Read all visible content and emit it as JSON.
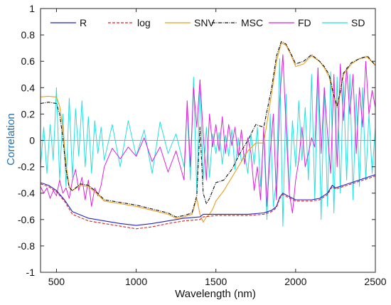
{
  "chart_data": {
    "type": "line",
    "xlabel": "Wavelength (nm)",
    "ylabel": "Correlation",
    "xlim": [
      400,
      2500
    ],
    "ylim": [
      -1,
      1
    ],
    "xticks": [
      500,
      1000,
      1500,
      2000,
      2500
    ],
    "yticks": [
      -1,
      -0.8,
      -0.6,
      -0.4,
      -0.2,
      0,
      0.2,
      0.4,
      0.6,
      0.8,
      1
    ],
    "ytick_labels": [
      "-1",
      "-0.8",
      "-0.6",
      "-0.4",
      "-0.2",
      "0",
      "0.2",
      "0.4",
      "0.6",
      "0.8",
      "1"
    ],
    "xtick_labels": [
      "500",
      "1000",
      "1500",
      "2000",
      "2500"
    ],
    "zero_line": true,
    "grid": false,
    "legend_position": "top",
    "colors": {
      "R": "#2222cc",
      "log": "#dd2222",
      "SNV": "#e8a020",
      "MSC": "#111111",
      "FD": "#dd22dd",
      "SD": "#22e0e0",
      "ylabel": "#1f6fb4",
      "zero_line": "#22dddd"
    },
    "series": [
      {
        "name": "R",
        "style": "solid",
        "x": [
          400,
          450,
          500,
          550,
          600,
          700,
          800,
          900,
          1000,
          1100,
          1200,
          1300,
          1400,
          1420,
          1500,
          1600,
          1700,
          1800,
          1850,
          1880,
          1900,
          1920,
          1950,
          2000,
          2050,
          2100,
          2150,
          2200,
          2230,
          2250,
          2300,
          2350,
          2400,
          2450,
          2500
        ],
        "y": [
          -0.32,
          -0.34,
          -0.38,
          -0.45,
          -0.54,
          -0.59,
          -0.61,
          -0.63,
          -0.645,
          -0.63,
          -0.61,
          -0.59,
          -0.58,
          -0.56,
          -0.56,
          -0.56,
          -0.56,
          -0.55,
          -0.53,
          -0.5,
          -0.43,
          -0.4,
          -0.42,
          -0.45,
          -0.45,
          -0.45,
          -0.44,
          -0.4,
          -0.34,
          -0.36,
          -0.34,
          -0.32,
          -0.3,
          -0.28,
          -0.26
        ]
      },
      {
        "name": "log",
        "style": "dashed",
        "x": [
          400,
          450,
          500,
          550,
          600,
          700,
          800,
          900,
          1000,
          1100,
          1200,
          1300,
          1400,
          1420,
          1500,
          1600,
          1700,
          1800,
          1850,
          1880,
          1900,
          1920,
          1950,
          2000,
          2050,
          2100,
          2150,
          2200,
          2230,
          2250,
          2300,
          2350,
          2400,
          2450,
          2500
        ],
        "y": [
          -0.33,
          -0.35,
          -0.39,
          -0.46,
          -0.56,
          -0.61,
          -0.63,
          -0.65,
          -0.67,
          -0.655,
          -0.63,
          -0.61,
          -0.6,
          -0.58,
          -0.57,
          -0.57,
          -0.57,
          -0.56,
          -0.54,
          -0.51,
          -0.44,
          -0.41,
          -0.43,
          -0.46,
          -0.46,
          -0.46,
          -0.45,
          -0.41,
          -0.35,
          -0.37,
          -0.35,
          -0.33,
          -0.31,
          -0.29,
          -0.27
        ]
      },
      {
        "name": "SNV",
        "style": "solid",
        "x": [
          400,
          450,
          500,
          520,
          540,
          560,
          580,
          600,
          650,
          700,
          750,
          800,
          900,
          1000,
          1100,
          1200,
          1250,
          1300,
          1350,
          1380,
          1400,
          1420,
          1440,
          1460,
          1480,
          1500,
          1550,
          1600,
          1650,
          1700,
          1750,
          1800,
          1850,
          1880,
          1910,
          1940,
          1970,
          2000,
          2050,
          2080,
          2100,
          2150,
          2180,
          2210,
          2240,
          2260,
          2280,
          2300,
          2350,
          2400,
          2450,
          2500
        ],
        "y": [
          0.33,
          0.335,
          0.33,
          0.26,
          0.1,
          -0.18,
          -0.35,
          -0.38,
          -0.34,
          -0.35,
          -0.4,
          -0.46,
          -0.48,
          -0.5,
          -0.53,
          -0.56,
          -0.59,
          -0.58,
          -0.56,
          -0.44,
          -0.56,
          -0.62,
          -0.58,
          -0.56,
          -0.52,
          -0.46,
          -0.38,
          -0.28,
          -0.18,
          -0.08,
          -0.02,
          -0.02,
          0.36,
          0.6,
          0.74,
          0.72,
          0.65,
          0.56,
          0.58,
          0.62,
          0.64,
          0.6,
          0.55,
          0.48,
          0.33,
          0.25,
          0.36,
          0.5,
          0.58,
          0.62,
          0.63,
          0.57
        ]
      },
      {
        "name": "MSC",
        "style": "dashdot",
        "x": [
          400,
          450,
          500,
          520,
          540,
          560,
          580,
          600,
          650,
          700,
          750,
          800,
          900,
          1000,
          1100,
          1200,
          1250,
          1300,
          1350,
          1380,
          1400,
          1420,
          1440,
          1460,
          1480,
          1500,
          1550,
          1600,
          1650,
          1700,
          1750,
          1800,
          1850,
          1880,
          1910,
          1940,
          1970,
          2000,
          2050,
          2080,
          2100,
          2150,
          2180,
          2210,
          2240,
          2260,
          2280,
          2300,
          2350,
          2400,
          2450,
          2500
        ],
        "y": [
          0.28,
          0.29,
          0.28,
          0.2,
          0.02,
          -0.22,
          -0.36,
          -0.38,
          -0.33,
          -0.34,
          -0.39,
          -0.45,
          -0.47,
          -0.49,
          -0.52,
          -0.55,
          -0.58,
          -0.57,
          -0.55,
          -0.42,
          0.1,
          -0.4,
          -0.48,
          -0.44,
          -0.38,
          -0.32,
          -0.3,
          -0.22,
          -0.1,
          0.0,
          0.12,
          0.1,
          0.4,
          0.64,
          0.75,
          0.73,
          0.66,
          0.58,
          0.6,
          0.63,
          0.65,
          0.6,
          0.56,
          0.5,
          0.34,
          0.26,
          0.37,
          0.51,
          0.59,
          0.62,
          0.64,
          0.57
        ]
      },
      {
        "name": "FD",
        "style": "solid",
        "x": [
          400,
          420,
          440,
          460,
          480,
          500,
          520,
          540,
          560,
          580,
          600,
          620,
          640,
          660,
          680,
          700,
          720,
          740,
          760,
          780,
          800,
          850,
          900,
          950,
          1000,
          1050,
          1100,
          1150,
          1200,
          1250,
          1300,
          1320,
          1340,
          1360,
          1380,
          1400,
          1420,
          1440,
          1460,
          1480,
          1500,
          1520,
          1540,
          1560,
          1580,
          1600,
          1620,
          1640,
          1660,
          1680,
          1700,
          1720,
          1740,
          1760,
          1780,
          1800,
          1820,
          1840,
          1860,
          1880,
          1900,
          1920,
          1940,
          1960,
          1980,
          2000,
          2020,
          2040,
          2060,
          2080,
          2100,
          2120,
          2140,
          2160,
          2180,
          2200,
          2220,
          2240,
          2260,
          2280,
          2300,
          2320,
          2340,
          2360,
          2380,
          2400,
          2420,
          2440,
          2460,
          2480,
          2500
        ],
        "y": [
          -0.35,
          -0.4,
          -0.36,
          -0.44,
          -0.38,
          -0.42,
          -0.3,
          -0.4,
          -0.36,
          -0.44,
          -0.3,
          -0.22,
          -0.38,
          -0.28,
          -0.45,
          -0.3,
          -0.5,
          -0.36,
          -0.42,
          -0.34,
          -0.2,
          -0.06,
          -0.14,
          -0.05,
          -0.12,
          0.02,
          -0.16,
          -0.05,
          -0.24,
          -0.08,
          -0.3,
          0.3,
          -0.2,
          0.4,
          0.1,
          0.46,
          0.05,
          -0.3,
          0.2,
          -0.05,
          0.12,
          -0.08,
          0.18,
          -0.1,
          0.12,
          -0.04,
          0.1,
          -0.12,
          0.08,
          -0.18,
          0.02,
          -0.1,
          -0.38,
          -0.2,
          -0.45,
          0.1,
          -0.5,
          -0.1,
          0.2,
          -0.45,
          0.3,
          0.65,
          0.1,
          -0.4,
          -0.55,
          -0.3,
          -0.15,
          0.1,
          -0.2,
          -0.1,
          0.02,
          -0.05,
          0.55,
          -0.1,
          0.4,
          0.05,
          -0.25,
          0.5,
          -0.2,
          0.58,
          0.15,
          0.55,
          0.2,
          0.5,
          -0.1,
          0.4,
          0.1,
          0.6,
          0.2,
          0.38,
          0.25
        ]
      },
      {
        "name": "SD",
        "style": "solid",
        "x": [
          400,
          420,
          440,
          460,
          480,
          500,
          520,
          540,
          560,
          580,
          600,
          620,
          640,
          660,
          680,
          700,
          720,
          740,
          760,
          780,
          800,
          850,
          900,
          950,
          1000,
          1050,
          1100,
          1150,
          1200,
          1250,
          1300,
          1320,
          1340,
          1360,
          1380,
          1400,
          1420,
          1440,
          1460,
          1480,
          1500,
          1520,
          1540,
          1560,
          1580,
          1600,
          1620,
          1640,
          1660,
          1680,
          1700,
          1720,
          1740,
          1760,
          1780,
          1800,
          1820,
          1840,
          1860,
          1880,
          1900,
          1920,
          1940,
          1960,
          1980,
          2000,
          2020,
          2040,
          2060,
          2080,
          2100,
          2120,
          2140,
          2160,
          2180,
          2200,
          2220,
          2240,
          2260,
          2280,
          2300,
          2320,
          2340,
          2360,
          2380,
          2400,
          2420,
          2440,
          2460,
          2480,
          2500
        ],
        "y": [
          -0.2,
          0.1,
          -0.25,
          0.12,
          -0.15,
          0.4,
          -0.3,
          0.2,
          -0.35,
          0.32,
          -0.28,
          0.24,
          -0.12,
          0.3,
          -0.2,
          0.18,
          -0.25,
          0.15,
          -0.1,
          0.1,
          -0.15,
          0.12,
          -0.2,
          0.15,
          -0.12,
          0.08,
          -0.25,
          0.14,
          -0.1,
          0.05,
          -0.2,
          0.25,
          -0.3,
          0.48,
          -0.4,
          0.46,
          -0.3,
          0.1,
          -0.28,
          0.05,
          -0.1,
          0.06,
          -0.18,
          0.04,
          -0.12,
          0.08,
          -0.22,
          0.02,
          -0.16,
          -0.1,
          -0.25,
          0.05,
          -0.18,
          0.1,
          -0.35,
          0.05,
          -0.6,
          0.2,
          -0.5,
          -0.3,
          0.62,
          -0.65,
          0.35,
          -0.4,
          0.15,
          -0.2,
          0.3,
          -0.15,
          0.25,
          -0.3,
          0.5,
          -0.45,
          0.55,
          -0.6,
          0.4,
          -0.5,
          0.52,
          -0.55,
          0.48,
          -0.4,
          0.45,
          -0.3,
          0.5,
          -0.45,
          0.35,
          -0.35,
          0.4,
          -0.3,
          0.2,
          -0.25,
          0.1
        ]
      }
    ]
  }
}
